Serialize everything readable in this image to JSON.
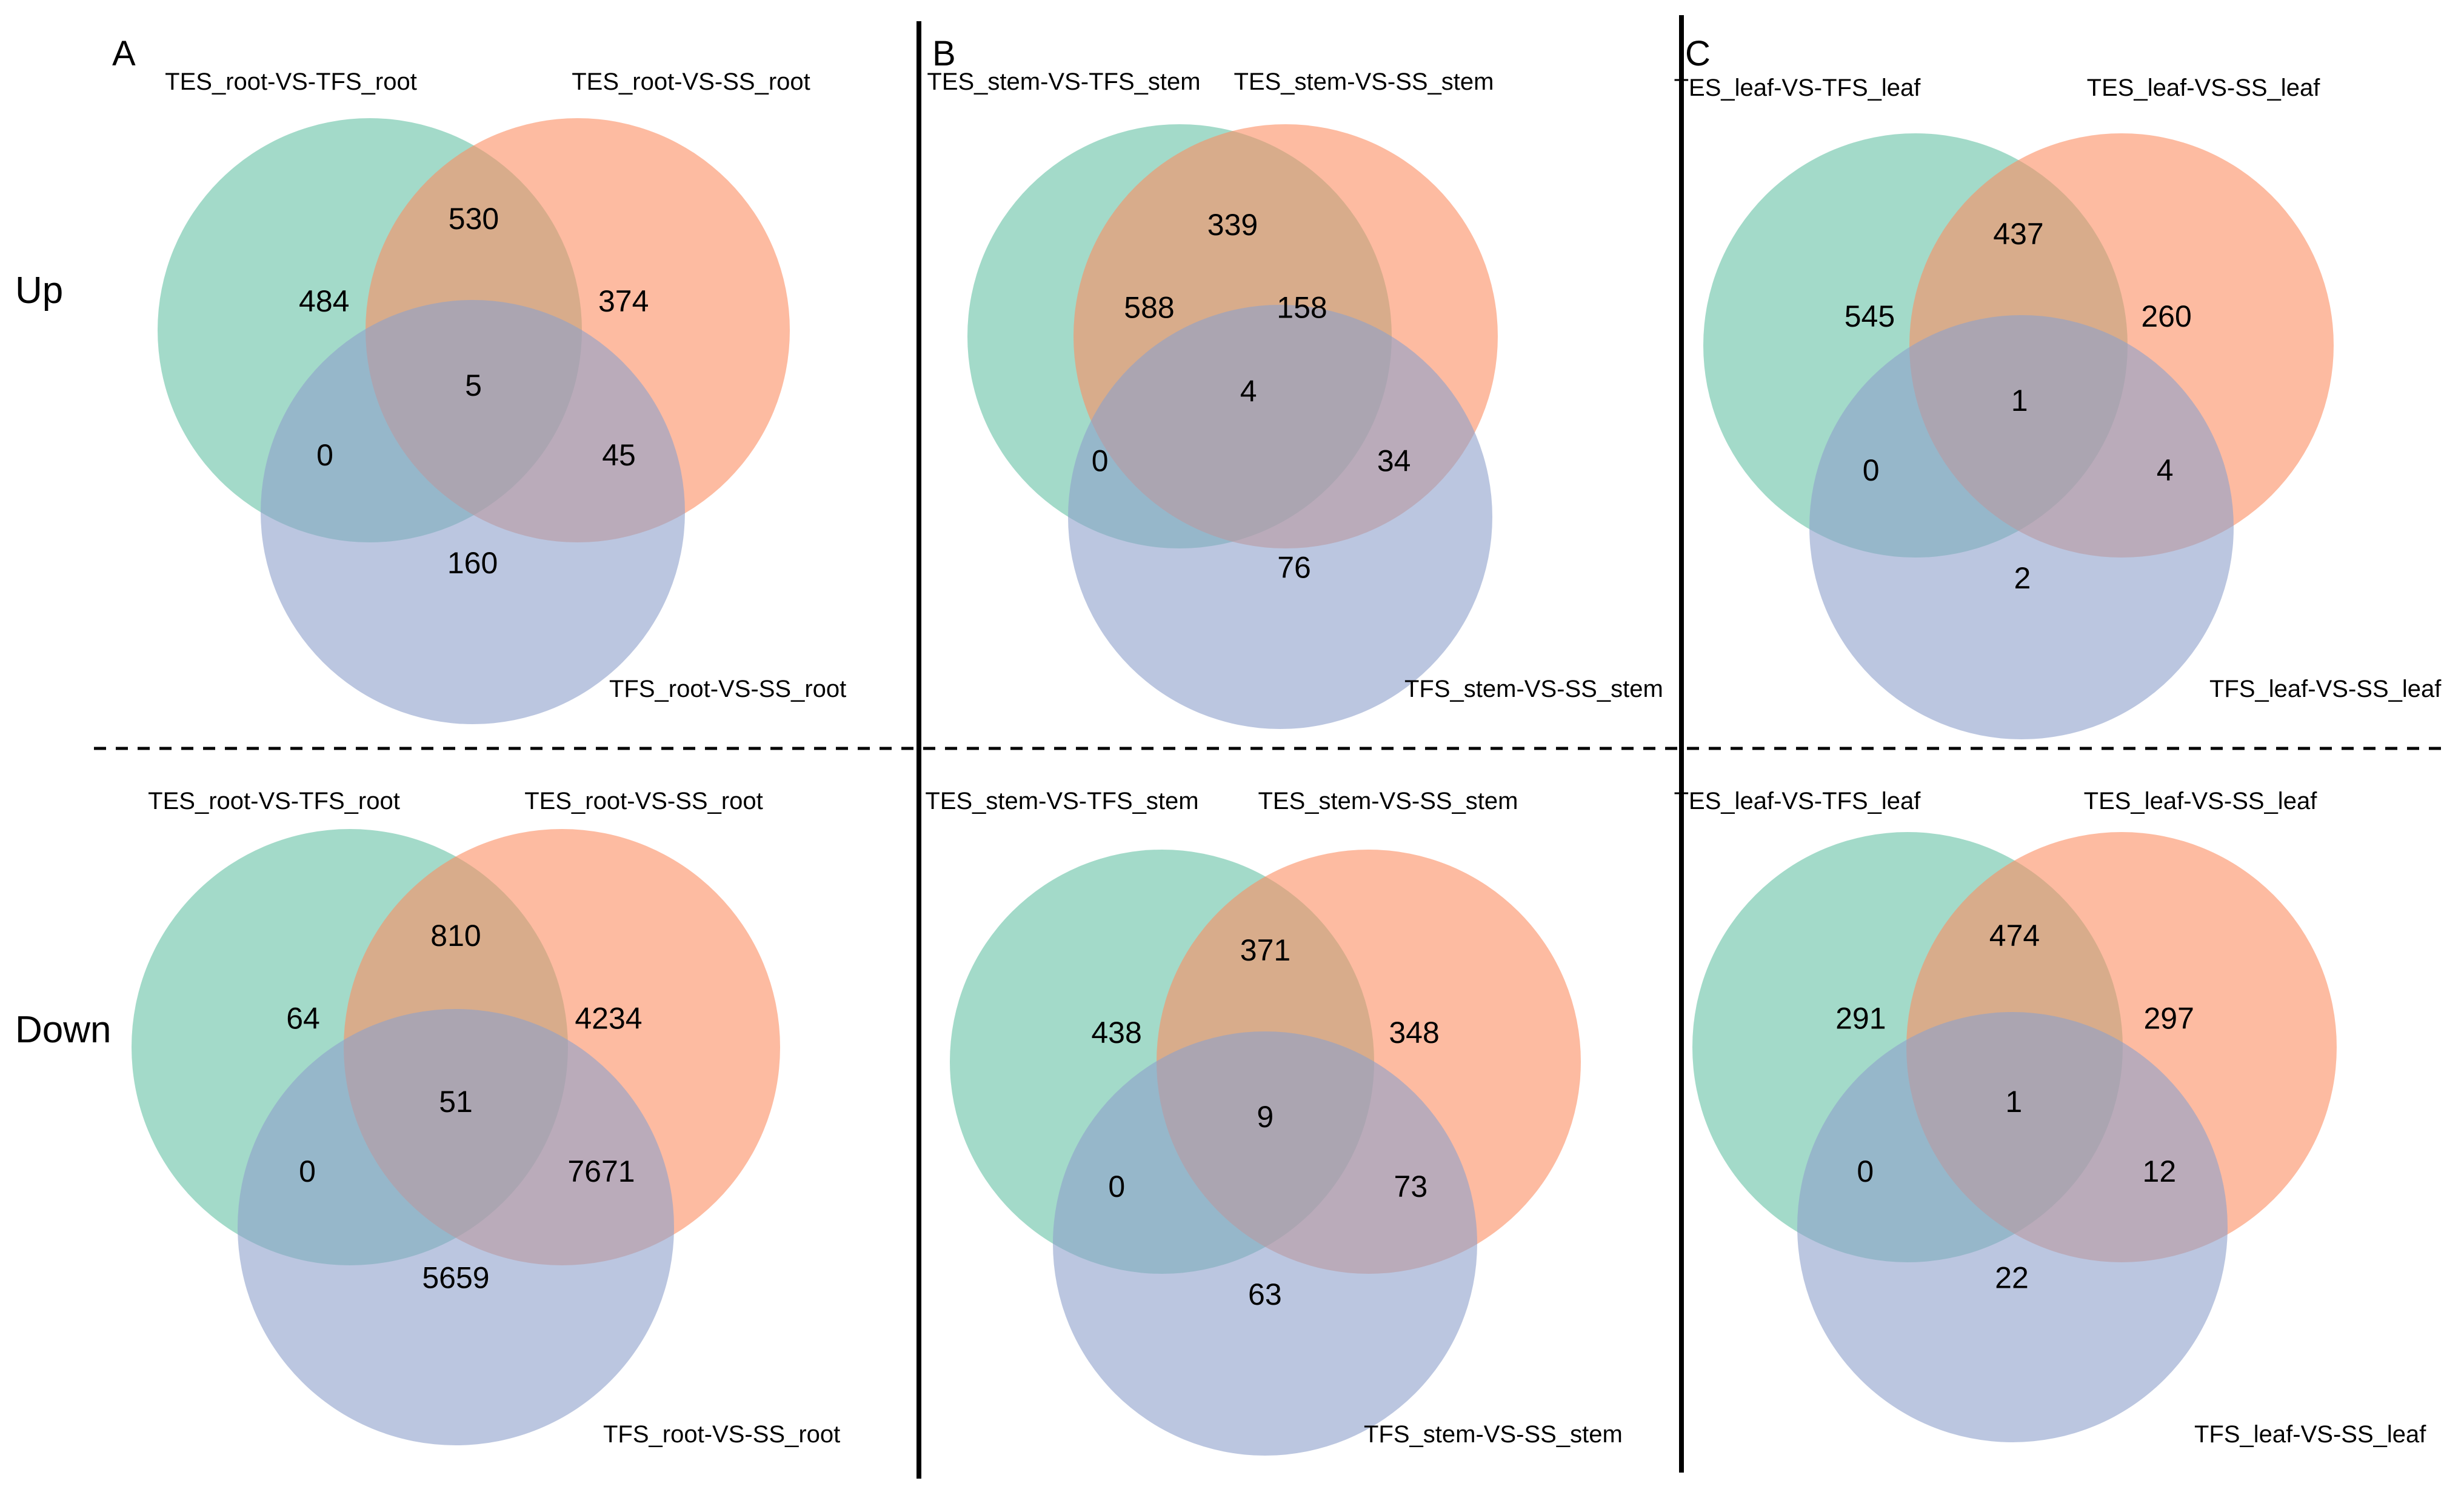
{
  "figure": {
    "panel_labels": [
      "A",
      "B",
      "C"
    ],
    "row_labels": [
      "Up",
      "Down"
    ],
    "colors": {
      "set1": "#66c2a5",
      "set2": "#fc8d62",
      "set3": "#8da0cb"
    }
  },
  "chart_data": [
    {
      "type": "venn",
      "panel": "A",
      "row": "Up",
      "sets": [
        "TES_root-VS-TFS_root",
        "TES_root-VS-SS_root",
        "TFS_root-VS-SS_root"
      ],
      "regions": {
        "only1": "484",
        "only2": "374",
        "only3": "160",
        "s12": "530",
        "s13": "0",
        "s23": "45",
        "s123": "5"
      }
    },
    {
      "type": "venn",
      "panel": "B",
      "row": "Up",
      "sets": [
        "TES_stem-VS-TFS_stem",
        "TES_stem-VS-SS_stem",
        "TFS_stem-VS-SS_stem"
      ],
      "regions": {
        "only1": "588",
        "only2": "158",
        "only3": "76",
        "s12": "339",
        "s13": "0",
        "s23": "34",
        "s123": "4"
      }
    },
    {
      "type": "venn",
      "panel": "C",
      "row": "Up",
      "sets": [
        "TES_leaf-VS-TFS_leaf",
        "TES_leaf-VS-SS_leaf",
        "TFS_leaf-VS-SS_leaf"
      ],
      "regions": {
        "only1": "545",
        "only2": "260",
        "only3": "2",
        "s12": "437",
        "s13": "0",
        "s23": "4",
        "s123": "1"
      }
    },
    {
      "type": "venn",
      "panel": "A",
      "row": "Down",
      "sets": [
        "TES_root-VS-TFS_root",
        "TES_root-VS-SS_root",
        "TFS_root-VS-SS_root"
      ],
      "regions": {
        "only1": "64",
        "only2": "4234",
        "only3": "5659",
        "s12": "810",
        "s13": "0",
        "s23": "7671",
        "s123": "51"
      }
    },
    {
      "type": "venn",
      "panel": "B",
      "row": "Down",
      "sets": [
        "TES_stem-VS-TFS_stem",
        "TES_stem-VS-SS_stem",
        "TFS_stem-VS-SS_stem"
      ],
      "regions": {
        "only1": "438",
        "only2": "348",
        "only3": "63",
        "s12": "371",
        "s13": "0",
        "s23": "73",
        "s123": "9"
      }
    },
    {
      "type": "venn",
      "panel": "C",
      "row": "Down",
      "sets": [
        "TES_leaf-VS-TFS_leaf",
        "TES_leaf-VS-SS_leaf",
        "TFS_leaf-VS-SS_leaf"
      ],
      "regions": {
        "only1": "291",
        "only2": "297",
        "only3": "22",
        "s12": "474",
        "s13": "0",
        "s23": "12",
        "s123": "1"
      }
    }
  ]
}
